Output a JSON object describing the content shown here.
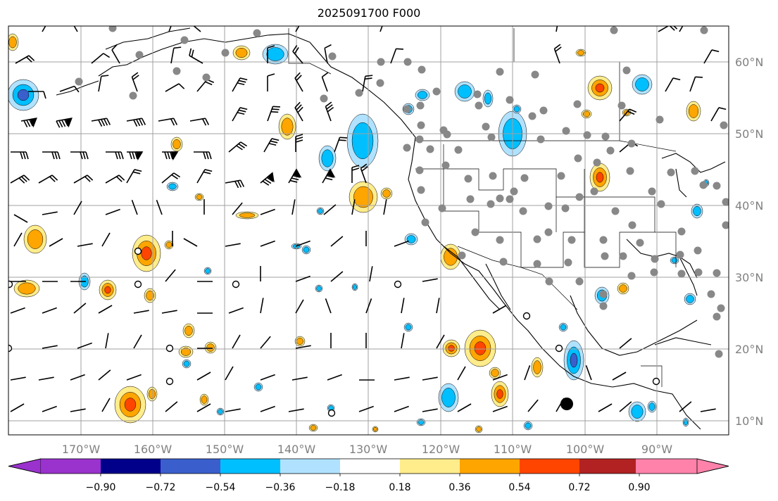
{
  "figure": {
    "title": "2025091700 F000"
  },
  "map": {
    "lon_range": [
      -180,
      -80
    ],
    "lat_range": [
      8,
      65
    ],
    "lon_labels": [
      "170°W",
      "160°W",
      "150°W",
      "140°W",
      "130°W",
      "120°W",
      "110°W",
      "100°W",
      "90°W"
    ],
    "lat_labels": [
      "60°N",
      "50°N",
      "40°N",
      "30°N",
      "20°N",
      "10°N"
    ],
    "gridlines": true,
    "label_color": "#808080"
  },
  "colorbar": {
    "tick_labels": [
      "−0.90",
      "−0.72",
      "−0.54",
      "−0.36",
      "−0.18",
      "0.18",
      "0.36",
      "0.54",
      "0.72",
      "0.90"
    ],
    "colors": [
      "#9a32cd",
      "#00008b",
      "#3a5fcd",
      "#00bfff",
      "#b0e2ff",
      "#ffffff",
      "#ffec8b",
      "#ffa500",
      "#ff4500",
      "#b22222",
      "#ff82ab"
    ],
    "extend": "both"
  }
}
